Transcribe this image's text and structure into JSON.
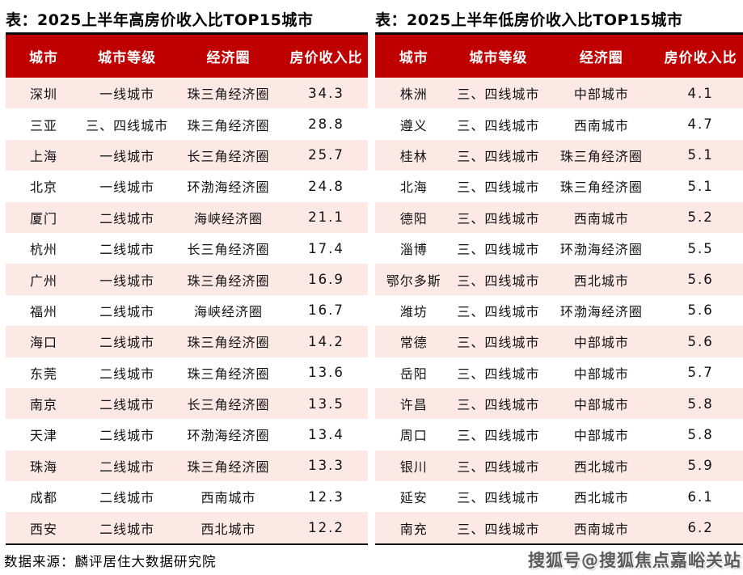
{
  "colors": {
    "header_bg": "#C00000",
    "row_alt_bg": "#FCE9E6",
    "border_dark": "#0A0A0A",
    "header_text": "#FFFFFF",
    "watermark": "#5A5A5A"
  },
  "footer": {
    "source_note": "数据来源：麟评居住大数据研究院",
    "watermark": "搜狐号@搜狐焦点嘉峪关站"
  },
  "tables": [
    {
      "title": "表：2025上半年高房价收入比TOP15城市",
      "columns": [
        "城市",
        "城市等级",
        "经济圈",
        "房价收入比"
      ],
      "rows": [
        [
          "深圳",
          "一线城市",
          "珠三角经济圈",
          "34.3"
        ],
        [
          "三亚",
          "三、四线城市",
          "珠三角经济圈",
          "28.8"
        ],
        [
          "上海",
          "一线城市",
          "长三角经济圈",
          "25.7"
        ],
        [
          "北京",
          "一线城市",
          "环渤海经济圈",
          "24.8"
        ],
        [
          "厦门",
          "二线城市",
          "海峡经济圈",
          "21.1"
        ],
        [
          "杭州",
          "二线城市",
          "长三角经济圈",
          "17.4"
        ],
        [
          "广州",
          "一线城市",
          "珠三角经济圈",
          "16.9"
        ],
        [
          "福州",
          "二线城市",
          "海峡经济圈",
          "16.7"
        ],
        [
          "海口",
          "二线城市",
          "珠三角经济圈",
          "14.2"
        ],
        [
          "东莞",
          "二线城市",
          "珠三角经济圈",
          "13.6"
        ],
        [
          "南京",
          "二线城市",
          "长三角经济圈",
          "13.5"
        ],
        [
          "天津",
          "二线城市",
          "环渤海经济圈",
          "13.4"
        ],
        [
          "珠海",
          "二线城市",
          "珠三角经济圈",
          "13.3"
        ],
        [
          "成都",
          "二线城市",
          "西南城市",
          "12.3"
        ],
        [
          "西安",
          "二线城市",
          "西北城市",
          "12.2"
        ]
      ]
    },
    {
      "title": "表：2025上半年低房价收入比TOP15城市",
      "columns": [
        "城市",
        "城市等级",
        "经济圈",
        "房价收入比"
      ],
      "rows": [
        [
          "株洲",
          "三、四线城市",
          "中部城市",
          "4.1"
        ],
        [
          "遵义",
          "三、四线城市",
          "西南城市",
          "4.7"
        ],
        [
          "桂林",
          "三、四线城市",
          "珠三角经济圈",
          "5.1"
        ],
        [
          "北海",
          "三、四线城市",
          "珠三角经济圈",
          "5.1"
        ],
        [
          "德阳",
          "三、四线城市",
          "西南城市",
          "5.2"
        ],
        [
          "淄博",
          "三、四线城市",
          "环渤海经济圈",
          "5.5"
        ],
        [
          "鄂尔多斯",
          "三、四线城市",
          "西北城市",
          "5.6"
        ],
        [
          "潍坊",
          "三、四线城市",
          "环渤海经济圈",
          "5.6"
        ],
        [
          "常德",
          "三、四线城市",
          "中部城市",
          "5.6"
        ],
        [
          "岳阳",
          "三、四线城市",
          "中部城市",
          "5.7"
        ],
        [
          "许昌",
          "三、四线城市",
          "中部城市",
          "5.8"
        ],
        [
          "周口",
          "三、四线城市",
          "中部城市",
          "5.8"
        ],
        [
          "银川",
          "三、四线城市",
          "西北城市",
          "5.9"
        ],
        [
          "延安",
          "三、四线城市",
          "西北城市",
          "6.1"
        ],
        [
          "南充",
          "三、四线城市",
          "西南城市",
          "6.2"
        ]
      ]
    }
  ]
}
